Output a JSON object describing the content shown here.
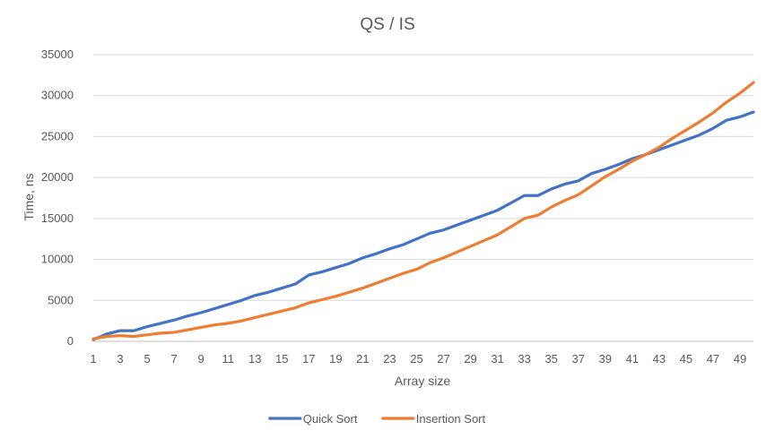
{
  "chart_data": {
    "type": "line",
    "title": "QS / IS",
    "xlabel": "Array size",
    "ylabel": "Time, ns",
    "x": [
      1,
      2,
      3,
      4,
      5,
      6,
      7,
      8,
      9,
      10,
      11,
      12,
      13,
      14,
      15,
      16,
      17,
      18,
      19,
      20,
      21,
      22,
      23,
      24,
      25,
      26,
      27,
      28,
      29,
      30,
      31,
      32,
      33,
      34,
      35,
      36,
      37,
      38,
      39,
      40,
      41,
      42,
      43,
      44,
      45,
      46,
      47,
      48,
      49,
      50
    ],
    "x_tick_labels": [
      "1",
      "3",
      "5",
      "7",
      "9",
      "11",
      "13",
      "15",
      "17",
      "19",
      "21",
      "23",
      "25",
      "27",
      "29",
      "31",
      "33",
      "35",
      "37",
      "39",
      "41",
      "43",
      "45",
      "47",
      "49"
    ],
    "y_tick_labels": [
      "0",
      "5000",
      "10000",
      "15000",
      "20000",
      "25000",
      "30000",
      "35000"
    ],
    "ylim": [
      0,
      35000
    ],
    "grid": true,
    "legend_position": "bottom",
    "series": [
      {
        "name": "Quick Sort",
        "color": "#4472c4",
        "values": [
          200,
          900,
          1300,
          1300,
          1800,
          2200,
          2600,
          3100,
          3500,
          4000,
          4500,
          5000,
          5600,
          6000,
          6500,
          7000,
          8100,
          8500,
          9000,
          9500,
          10200,
          10700,
          11300,
          11800,
          12500,
          13200,
          13600,
          14200,
          14800,
          15400,
          16000,
          16900,
          17800,
          17800,
          18600,
          19200,
          19600,
          20500,
          21000,
          21600,
          22300,
          22800,
          23400,
          24000,
          24600,
          25200,
          26000,
          27000,
          27400,
          28000
        ]
      },
      {
        "name": "Insertion Sort",
        "color": "#ed7d31",
        "values": [
          300,
          600,
          700,
          600,
          800,
          1000,
          1100,
          1400,
          1700,
          2000,
          2200,
          2500,
          2900,
          3300,
          3700,
          4100,
          4700,
          5100,
          5500,
          6000,
          6500,
          7100,
          7700,
          8300,
          8800,
          9600,
          10200,
          10900,
          11600,
          12300,
          13000,
          14000,
          15000,
          15400,
          16400,
          17200,
          17900,
          19000,
          20100,
          21000,
          22000,
          22800,
          23700,
          24800,
          25800,
          26800,
          27900,
          29200,
          30300,
          31600
        ]
      }
    ]
  }
}
